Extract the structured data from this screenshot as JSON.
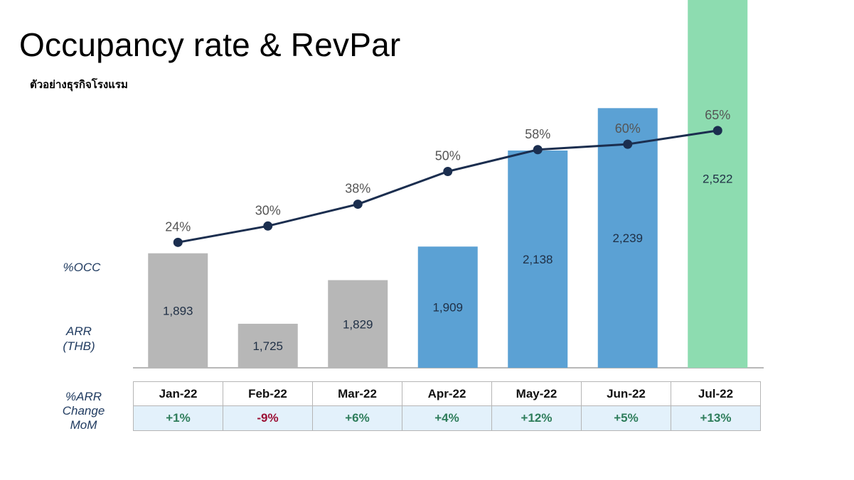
{
  "title": "Occupancy rate & RevPar",
  "subtitle": "ตัวอย่างธุรกิจโรงแรม",
  "labels": {
    "occ": "%OCC",
    "arr_line1": "ARR",
    "arr_line2": "(THB)",
    "change_line1": "%ARR",
    "change_line2": "Change",
    "change_line3": "MoM"
  },
  "colors": {
    "bar_grey": "#b7b7b7",
    "bar_blue": "#5ba1d4",
    "bar_green": "#8ddcb0",
    "line": "#1b2e4f",
    "positive": "#2e7d5b",
    "negative": "#9b1035"
  },
  "chart_data": {
    "type": "bar",
    "categories": [
      "Jan-22",
      "Feb-22",
      "Mar-22",
      "Apr-22",
      "May-22",
      "Jun-22",
      "Jul-22"
    ],
    "series": [
      {
        "name": "ARR (THB)",
        "type": "bar",
        "values": [
          1893,
          1725,
          1829,
          1909,
          2138,
          2239,
          2522
        ],
        "labels": [
          "1,893",
          "1,725",
          "1,829",
          "1,909",
          "2,138",
          "2,239",
          "2,522"
        ],
        "bar_colors": [
          "grey",
          "grey",
          "grey",
          "blue",
          "blue",
          "blue",
          "green"
        ]
      },
      {
        "name": "%OCC",
        "type": "line",
        "values": [
          24,
          30,
          38,
          50,
          58,
          60,
          65
        ],
        "labels": [
          "24%",
          "30%",
          "38%",
          "50%",
          "58%",
          "60%",
          "65%"
        ]
      }
    ],
    "mom_change": [
      "+1%",
      "-9%",
      "+6%",
      "+4%",
      "+12%",
      "+5%",
      "+13%"
    ],
    "grid": false,
    "legend": "none"
  }
}
